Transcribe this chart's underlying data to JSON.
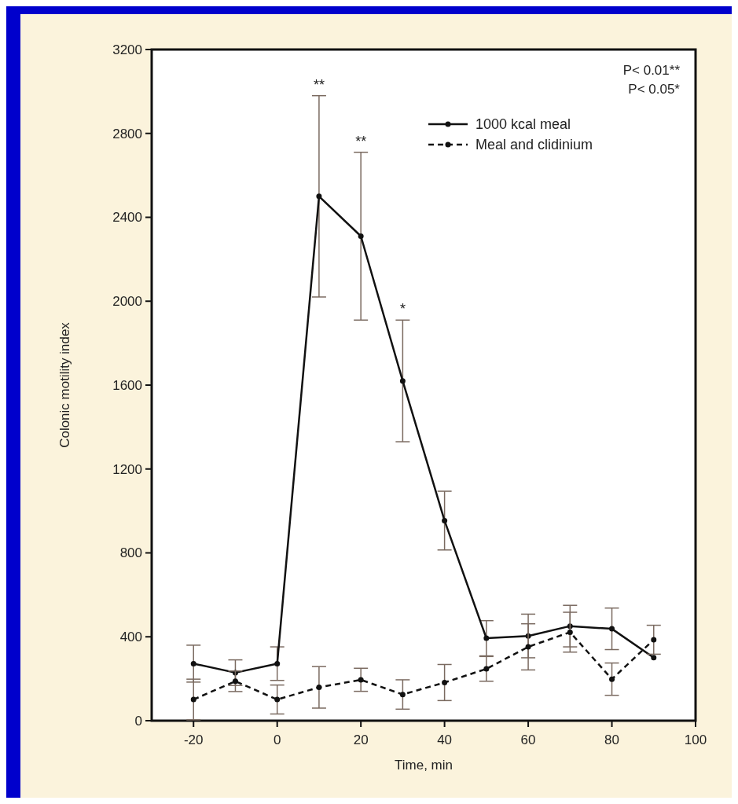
{
  "chart_data": {
    "type": "line",
    "xlabel": "Time, min",
    "ylabel": "Colonic motility index",
    "x": [
      -20,
      -10,
      0,
      10,
      20,
      30,
      40,
      50,
      60,
      70,
      80,
      90
    ],
    "xlim": [
      -30,
      100
    ],
    "xticks": [
      -20,
      0,
      20,
      40,
      60,
      80,
      100
    ],
    "ylim": [
      0,
      3200
    ],
    "yticks": [
      0,
      400,
      800,
      1200,
      1600,
      2000,
      2400,
      2800,
      3200
    ],
    "grid": false,
    "legend": "top right",
    "series": [
      {
        "name": "1000 kcal meal",
        "color": "#111111",
        "line_style": "solid",
        "marker": "circle",
        "values": [
          272,
          229,
          272,
          2500,
          2310,
          1620,
          954,
          393,
          404,
          451,
          438,
          301
        ],
        "errors": [
          88,
          61,
          80,
          480,
          400,
          290,
          140,
          84,
          104,
          99,
          99,
          null
        ]
      },
      {
        "name": "Meal and clidinium",
        "color": "#111111",
        "line_style": "dashed",
        "marker": "circle",
        "values": [
          101,
          188,
          101,
          159,
          195,
          125,
          182,
          247,
          352,
          422,
          198,
          386
        ],
        "errors": [
          97,
          49,
          69,
          99,
          55,
          70,
          86,
          59,
          110,
          95,
          77,
          69
        ]
      }
    ],
    "annotations": [
      {
        "text": "**",
        "x": 10,
        "y": 2980
      },
      {
        "text": "**",
        "x": 20,
        "y": 2710
      },
      {
        "text": "*",
        "x": 30,
        "y": 1910
      },
      "P< 0.01**",
      "P< 0.05*"
    ]
  }
}
